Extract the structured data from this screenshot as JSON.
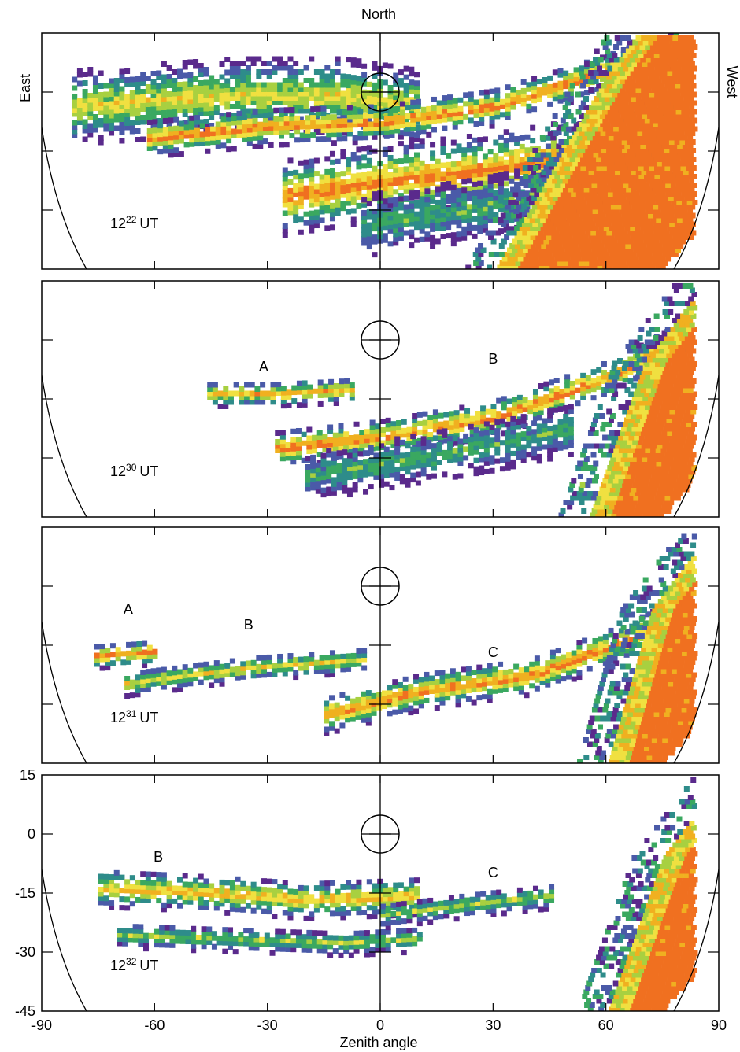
{
  "figure": {
    "top_label": "North",
    "left_label": "East",
    "right_label": "West",
    "xlabel": "Zenith angle"
  },
  "colors": {
    "frame": "#000000",
    "scale": [
      "#5a2a8c",
      "#4a5aa8",
      "#2e8c8a",
      "#3aa860",
      "#a8d040",
      "#f0e040",
      "#f0b020",
      "#f07020"
    ]
  },
  "chart_data": [
    {
      "type": "heatmap",
      "time_label": {
        "hour": "12",
        "minute": "22",
        "suffix": "UT"
      },
      "xlim": [
        -90,
        90
      ],
      "ylim": [
        -45,
        15
      ],
      "xticks": [
        -90,
        -60,
        -30,
        0,
        30,
        60,
        90
      ],
      "yticks": [
        -45,
        -30,
        -15,
        0,
        15
      ],
      "show_tick_labels": false,
      "labels": [],
      "bands": [
        {
          "x": [
            -82,
            -40,
            -10,
            10
          ],
          "y": [
            -3,
            0,
            0,
            -3
          ],
          "w": 6,
          "peak": 5
        },
        {
          "x": [
            -62,
            -30,
            0,
            30,
            60,
            80
          ],
          "y": [
            -11,
            -8,
            -7,
            -3,
            6,
            13
          ],
          "w": 3,
          "peak": 7
        },
        {
          "x": [
            -26,
            0,
            30,
            55,
            80
          ],
          "y": [
            -26,
            -22,
            -19,
            -15,
            -8
          ],
          "w": 6,
          "peak": 7
        },
        {
          "x": [
            -5,
            25,
            50,
            80
          ],
          "y": [
            -33,
            -29,
            -24,
            -15
          ],
          "w": 5,
          "peak": 3
        }
      ],
      "wedge": {
        "x_start": 30,
        "y_bottom": -45,
        "x_top": 60,
        "y_top": 5
      }
    },
    {
      "type": "heatmap",
      "time_label": {
        "hour": "12",
        "minute": "30",
        "suffix": "UT"
      },
      "xlim": [
        -90,
        90
      ],
      "ylim": [
        -45,
        15
      ],
      "xticks": [
        -90,
        -60,
        -30,
        0,
        30,
        60,
        90
      ],
      "yticks": [
        -45,
        -30,
        -15,
        0,
        15
      ],
      "show_tick_labels": false,
      "labels": [
        {
          "text": "A",
          "x": -31,
          "y": -8
        },
        {
          "text": "B",
          "x": 30,
          "y": -6
        }
      ],
      "bands": [
        {
          "x": [
            -46,
            -30,
            -8
          ],
          "y": [
            -13,
            -13,
            -12
          ],
          "w": 2,
          "peak": 6
        },
        {
          "x": [
            -28,
            0,
            30,
            60,
            82
          ],
          "y": [
            -27,
            -24,
            -19,
            -9,
            2
          ],
          "w": 3,
          "peak": 7
        },
        {
          "x": [
            -20,
            5,
            30,
            50
          ],
          "y": [
            -34,
            -30,
            -26,
            -22
          ],
          "w": 4,
          "peak": 3
        }
      ],
      "wedge": {
        "x_start": 55,
        "y_bottom": -45,
        "x_top": 70,
        "y_top": -5
      }
    },
    {
      "type": "heatmap",
      "time_label": {
        "hour": "12",
        "minute": "31",
        "suffix": "UT"
      },
      "xlim": [
        -90,
        90
      ],
      "ylim": [
        -45,
        15
      ],
      "xticks": [
        -90,
        -60,
        -30,
        0,
        30,
        60,
        90
      ],
      "yticks": [
        -45,
        -30,
        -15,
        0,
        15
      ],
      "show_tick_labels": false,
      "labels": [
        {
          "text": "A",
          "x": -67,
          "y": -7
        },
        {
          "text": "B",
          "x": -35,
          "y": -11
        },
        {
          "text": "C",
          "x": 30,
          "y": -18
        }
      ],
      "bands": [
        {
          "x": [
            -76,
            -60
          ],
          "y": [
            -17,
            -16
          ],
          "w": 2,
          "peak": 7
        },
        {
          "x": [
            -68,
            -35,
            -5
          ],
          "y": [
            -24,
            -20,
            -18
          ],
          "w": 2,
          "peak": 5
        },
        {
          "x": [
            -15,
            10,
            40,
            65,
            82
          ],
          "y": [
            -32,
            -26,
            -22,
            -13,
            -5
          ],
          "w": 3,
          "peak": 7
        }
      ],
      "wedge": {
        "x_start": 60,
        "y_bottom": -45,
        "x_top": 72,
        "y_top": -5
      }
    },
    {
      "type": "heatmap",
      "time_label": {
        "hour": "12",
        "minute": "32",
        "suffix": "UT"
      },
      "xlim": [
        -90,
        90
      ],
      "ylim": [
        -45,
        15
      ],
      "xticks": [
        -90,
        -60,
        -30,
        0,
        30,
        60,
        90
      ],
      "yticks": [
        -45,
        -30,
        -15,
        0,
        15
      ],
      "show_tick_labels": true,
      "labels": [
        {
          "text": "B",
          "x": -59,
          "y": -7
        },
        {
          "text": "C",
          "x": 30,
          "y": -11
        }
      ],
      "bands": [
        {
          "x": [
            -75,
            -50,
            -20,
            10
          ],
          "y": [
            -13,
            -14,
            -16,
            -15
          ],
          "w": 3,
          "peak": 6
        },
        {
          "x": [
            -70,
            -40,
            -10,
            10
          ],
          "y": [
            -25,
            -26,
            -27,
            -26
          ],
          "w": 2,
          "peak": 4
        },
        {
          "x": [
            0,
            25,
            45
          ],
          "y": [
            -20,
            -17,
            -15
          ],
          "w": 2,
          "peak": 4
        }
      ],
      "wedge": {
        "x_start": 60,
        "y_bottom": -45,
        "x_top": 75,
        "y_top": -5
      }
    }
  ]
}
